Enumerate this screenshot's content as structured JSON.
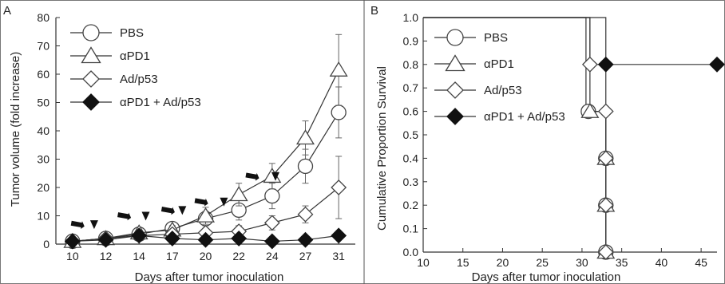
{
  "chart_data": [
    {
      "panel": "A",
      "type": "line",
      "xlabel": "Days after tumor inoculation",
      "ylabel": "Tumor volume (fold increase)",
      "categories": [
        "10",
        "12",
        "14",
        "17",
        "20",
        "22",
        "24",
        "27",
        "31"
      ],
      "ylim": [
        0,
        80
      ],
      "yticks": [
        0,
        10,
        20,
        30,
        40,
        50,
        60,
        70,
        80
      ],
      "legend_position": "top-left",
      "series": [
        {
          "name": "PBS",
          "marker": "circle-open",
          "values": [
            1,
            2,
            3.5,
            5.5,
            9,
            12,
            17,
            27.5,
            46.5
          ],
          "errors": [
            0.5,
            0.8,
            1.0,
            1.5,
            2.5,
            3.5,
            4.5,
            6,
            9
          ]
        },
        {
          "name": "αPD1",
          "marker": "triangle-open",
          "values": [
            1,
            2,
            4,
            5,
            10,
            17.5,
            24,
            37.5,
            61.5
          ],
          "errors": [
            0.5,
            0.8,
            1.0,
            1.5,
            3,
            4,
            4.5,
            6,
            12.5
          ]
        },
        {
          "name": "Ad/p53",
          "marker": "diamond-open",
          "values": [
            1,
            2,
            3,
            3.5,
            4,
            4.5,
            7.5,
            10.5,
            20
          ],
          "errors": [
            0.5,
            0.8,
            0.8,
            1.0,
            1.5,
            2,
            2.5,
            3,
            11
          ]
        },
        {
          "name": "αPD1 + Ad/p53",
          "marker": "diamond-filled",
          "values": [
            1,
            1.5,
            3,
            2,
            1.5,
            2,
            1,
            1.5,
            3
          ],
          "errors": [
            0.3,
            0.5,
            0.5,
            0.5,
            0.5,
            0.5,
            0.3,
            0.5,
            1
          ]
        }
      ],
      "treatment_marks": {
        "note": "arrowheads mark treatment days",
        "x": [
          10.3,
          11.3,
          13.1,
          14.6,
          16.6,
          17.9,
          19.6,
          21.1,
          22.8,
          24.3
        ],
        "y": [
          7,
          7,
          10,
          10,
          12,
          12,
          15,
          15,
          24,
          24
        ],
        "shape": [
          "arrow",
          "triangle",
          "arrow",
          "triangle",
          "arrow",
          "triangle",
          "arrow",
          "triangle",
          "arrow",
          "triangle"
        ]
      }
    },
    {
      "panel": "B",
      "type": "line",
      "step": true,
      "xlabel": "Days after tumor inoculation",
      "ylabel": "Cumulative Proportion Survival",
      "xlim": [
        10,
        47
      ],
      "xticks": [
        10,
        15,
        20,
        25,
        30,
        35,
        40,
        45
      ],
      "ylim": [
        0,
        1
      ],
      "yticks": [
        "0.0",
        "0.1",
        "0.2",
        "0.3",
        "0.4",
        "0.5",
        "0.6",
        "0.7",
        "0.8",
        "0.9",
        "1.0"
      ],
      "legend_position": "top-left",
      "series": [
        {
          "name": "PBS",
          "marker": "circle-open",
          "step_x": [
            10,
            30.5,
            30.5,
            33,
            33
          ],
          "step_y": [
            1,
            1,
            0.6,
            0.6,
            0
          ],
          "points": [
            [
              30.8,
              0.6
            ],
            [
              33,
              0.4
            ],
            [
              33,
              0.2
            ],
            [
              33,
              0
            ]
          ]
        },
        {
          "name": "αPD1",
          "marker": "triangle-open",
          "step_x": [
            10,
            31,
            31,
            33,
            33
          ],
          "step_y": [
            1,
            1,
            0.6,
            0.6,
            0
          ],
          "points": [
            [
              31,
              0.6
            ],
            [
              33,
              0.4
            ],
            [
              33,
              0.2
            ],
            [
              33,
              0
            ]
          ]
        },
        {
          "name": "Ad/p53",
          "marker": "diamond-open",
          "step_x": [
            10,
            31,
            31,
            33,
            33
          ],
          "step_y": [
            1,
            1,
            0.8,
            0.8,
            0
          ],
          "points": [
            [
              31,
              0.8
            ],
            [
              33,
              0.6
            ],
            [
              33,
              0.4
            ],
            [
              33,
              0.2
            ],
            [
              33,
              0
            ]
          ]
        },
        {
          "name": "αPD1 + Ad/p53",
          "marker": "diamond-filled",
          "step_x": [
            10,
            33,
            33,
            47
          ],
          "step_y": [
            1,
            1,
            0.8,
            0.8
          ],
          "points": [
            [
              33,
              0.8
            ],
            [
              47,
              0.8
            ]
          ]
        }
      ]
    }
  ]
}
